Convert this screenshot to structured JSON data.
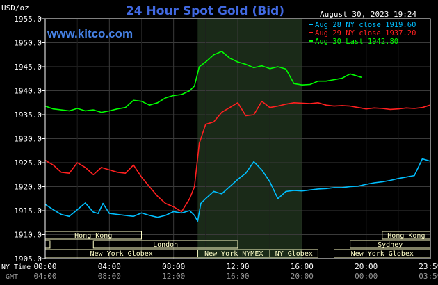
{
  "chart_data": {
    "type": "line",
    "title": "24 Hour Spot Gold (Bid)",
    "watermark": "www.kitco.com",
    "timestamp": "August 30, 2023 19:24",
    "y_unit_label": "USD/oz",
    "ylim": [
      1905.0,
      1955.0
    ],
    "y_ticks": [
      "1905.0",
      "1910.0",
      "1915.0",
      "1920.0",
      "1925.0",
      "1930.0",
      "1935.0",
      "1940.0",
      "1945.0",
      "1950.0",
      "1955.0"
    ],
    "xlim": [
      0,
      24
    ],
    "x_label_ny": "NY Time",
    "x_label_gmt": "GMT",
    "x_ticks_ny": [
      "00:00",
      "04:00",
      "08:00",
      "12:00",
      "16:00",
      "20:00",
      "23:59"
    ],
    "x_ticks_gmt": [
      "04:00",
      "08:00",
      "12:00",
      "16:00",
      "20:00",
      "00:00",
      "03:59"
    ],
    "highlight_hours": [
      9.5,
      16.0
    ],
    "grid": true,
    "legend_position": "top-right",
    "series": [
      {
        "name": "Aug 28 NY close 1919.60",
        "color": "#00BFFF",
        "x": [
          0,
          0.5,
          1,
          1.5,
          2,
          2.5,
          3,
          3.3,
          3.6,
          4,
          4.5,
          5,
          5.5,
          6,
          6.5,
          7,
          7.5,
          8,
          8.5,
          9,
          9.3,
          9.5,
          9.7,
          10,
          10.5,
          11,
          11.5,
          12,
          12.5,
          13,
          13.5,
          14,
          14.5,
          15,
          15.5,
          16,
          16.5,
          17,
          17.5,
          18,
          18.5,
          19,
          19.5,
          20,
          20.5,
          21,
          21.5,
          22,
          22.5,
          23,
          23.5,
          23.99
        ],
        "y": [
          1916.3,
          1915.2,
          1914.2,
          1913.8,
          1915.2,
          1916.6,
          1914.7,
          1914.4,
          1916.5,
          1914.4,
          1914.2,
          1914.0,
          1913.8,
          1914.5,
          1914.0,
          1913.6,
          1914.0,
          1914.8,
          1914.5,
          1915.0,
          1914.0,
          1912.8,
          1916.5,
          1917.5,
          1919.0,
          1918.5,
          1920.0,
          1921.5,
          1922.8,
          1925.2,
          1923.5,
          1921.0,
          1917.5,
          1919.0,
          1919.2,
          1919.1,
          1919.3,
          1919.5,
          1919.6,
          1919.8,
          1919.8,
          1920.0,
          1920.1,
          1920.5,
          1920.8,
          1921.0,
          1921.3,
          1921.7,
          1922.0,
          1922.3,
          1925.8,
          1925.3
        ]
      },
      {
        "name": "Aug 29 NY close 1937.20",
        "color": "#FF2020",
        "x": [
          0,
          0.5,
          1,
          1.5,
          2,
          2.5,
          3,
          3.5,
          4,
          4.5,
          5,
          5.5,
          6,
          6.5,
          7,
          7.5,
          8,
          8.5,
          9,
          9.3,
          9.6,
          10,
          10.5,
          11,
          11.5,
          12,
          12.5,
          13,
          13.5,
          14,
          14.5,
          15,
          15.5,
          16,
          16.5,
          17,
          17.5,
          18,
          18.5,
          19,
          19.5,
          20,
          20.5,
          21,
          21.5,
          22,
          22.5,
          23,
          23.5,
          23.99
        ],
        "y": [
          1925.5,
          1924.5,
          1923.0,
          1922.8,
          1925.0,
          1924.0,
          1922.5,
          1924.0,
          1923.5,
          1923.0,
          1922.8,
          1924.5,
          1922.0,
          1920.0,
          1918.0,
          1916.5,
          1915.8,
          1914.8,
          1917.5,
          1920.0,
          1929.0,
          1933.0,
          1933.5,
          1935.5,
          1936.5,
          1937.5,
          1934.8,
          1935.0,
          1937.8,
          1936.5,
          1936.8,
          1937.2,
          1937.5,
          1937.4,
          1937.3,
          1937.5,
          1937.0,
          1936.8,
          1936.9,
          1936.8,
          1936.5,
          1936.2,
          1936.4,
          1936.3,
          1936.1,
          1936.2,
          1936.4,
          1936.3,
          1936.5,
          1937.0
        ]
      },
      {
        "name": "Aug 30 Last 1942.80",
        "color": "#00FF00",
        "x": [
          0,
          0.5,
          1,
          1.5,
          2,
          2.5,
          3,
          3.5,
          4,
          4.5,
          5,
          5.5,
          6,
          6.5,
          7,
          7.5,
          8,
          8.5,
          9,
          9.3,
          9.6,
          10,
          10.5,
          11,
          11.5,
          12,
          12.5,
          13,
          13.5,
          14,
          14.5,
          15,
          15.5,
          16,
          16.5,
          17,
          17.5,
          18,
          18.5,
          19,
          19.5,
          19.7
        ],
        "y": [
          1936.8,
          1936.2,
          1936.0,
          1935.8,
          1936.3,
          1935.8,
          1936.0,
          1935.5,
          1935.8,
          1936.2,
          1936.5,
          1938.0,
          1937.8,
          1937.0,
          1937.5,
          1938.5,
          1939.0,
          1939.2,
          1940.0,
          1941.0,
          1945.0,
          1946.0,
          1947.5,
          1948.2,
          1946.8,
          1946.0,
          1945.5,
          1944.8,
          1945.2,
          1944.6,
          1945.0,
          1944.5,
          1941.5,
          1941.2,
          1941.3,
          1942.0,
          1942.0,
          1942.3,
          1942.6,
          1943.5,
          1943.0,
          1942.8
        ]
      }
    ],
    "markets_row1": [
      {
        "name": "Hong Kong",
        "start": 0,
        "end": 6
      },
      {
        "name": "Hong Kong",
        "start": 21,
        "end": 24
      }
    ],
    "markets_row2": [
      {
        "name": "",
        "start": 0,
        "end": 0.3
      },
      {
        "name": "London",
        "start": 3,
        "end": 12
      },
      {
        "name": "Sydney",
        "start": 19,
        "end": 23.99
      }
    ],
    "markets_row3": [
      {
        "name": "New York Globex",
        "start": 0,
        "end": 9.5
      },
      {
        "name": "New York NYMEX",
        "start": 9.5,
        "end": 14
      },
      {
        "name": "NY Globex",
        "start": 14,
        "end": 17
      },
      {
        "name": "New York Globex",
        "start": 18,
        "end": 24
      }
    ],
    "colors": {
      "background": "#000000",
      "highlight": "#1A2A18",
      "grid": "#3A3A3A",
      "title": "#4169E1",
      "watermark": "#4682E6",
      "market_bar": "#FFFFC8",
      "text": "#FFFFFF",
      "gmt_text": "#9A9A9A"
    }
  }
}
